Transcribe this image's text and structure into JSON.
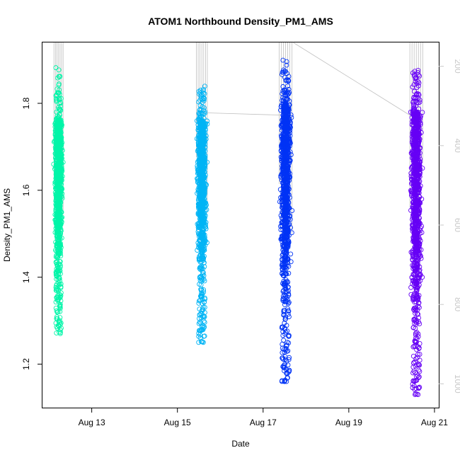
{
  "chart_data": {
    "type": "scatter",
    "title": "ATOM1 Northbound Density_PM1_AMS",
    "xlabel": "Date",
    "ylabel": "Density_PM1_AMS",
    "x_ticks": [
      {
        "label": "Aug 13",
        "day": 13
      },
      {
        "label": "Aug 15",
        "day": 15
      },
      {
        "label": "Aug 17",
        "day": 17
      },
      {
        "label": "Aug 19",
        "day": 19
      },
      {
        "label": "Aug 21",
        "day": 21
      }
    ],
    "xlim_days": [
      11.85,
      21.1
    ],
    "ylim": [
      1.1,
      1.94
    ],
    "y_ticks": [
      1.2,
      1.4,
      1.6,
      1.8
    ],
    "y2_ticks": [
      200,
      400,
      600,
      800,
      1000
    ],
    "y2lim": [
      1060,
      140
    ],
    "grid": false,
    "legend": "none",
    "series": [
      {
        "day_start": 12.1,
        "day_end": 12.35,
        "y_core_min": 1.45,
        "y_core_max": 1.76,
        "y_min": 1.27,
        "y_max": 1.89,
        "color": "#00f5a8"
      },
      {
        "day_start": 15.42,
        "day_end": 15.72,
        "y_core_min": 1.45,
        "y_core_max": 1.76,
        "y_min": 1.25,
        "y_max": 1.85,
        "color": "#00b4f5"
      },
      {
        "day_start": 17.35,
        "day_end": 17.7,
        "y_core_min": 1.39,
        "y_core_max": 1.8,
        "y_min": 1.16,
        "y_max": 1.9,
        "color": "#0033f5"
      },
      {
        "day_start": 20.4,
        "day_end": 20.75,
        "y_core_min": 1.36,
        "y_core_max": 1.78,
        "y_min": 1.13,
        "y_max": 1.9,
        "color": "#6600f5"
      }
    ],
    "trace_color": "#c0c0c0"
  }
}
